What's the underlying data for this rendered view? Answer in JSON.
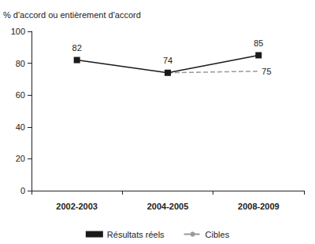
{
  "chart_data": {
    "type": "line",
    "y_label": "% d'accord ou entièrement d'accord",
    "categories": [
      "2002-2003",
      "2004-2005",
      "2008-2009"
    ],
    "series": [
      {
        "name": "Résultats réels",
        "color": "#1a1a1a",
        "values": [
          82,
          74,
          85
        ],
        "marker": "square",
        "line_style": "solid"
      },
      {
        "name": "Cibles",
        "color": "#9a9a9a",
        "values": [
          null,
          74,
          75
        ],
        "value_labels": [
          null,
          null,
          "75"
        ],
        "marker": "none",
        "line_style": "dashed"
      }
    ],
    "ylim": [
      0,
      100
    ],
    "yticks": [
      0,
      20,
      40,
      60,
      80,
      100
    ],
    "grid": false,
    "legend": "bottom",
    "data_labels": true
  }
}
